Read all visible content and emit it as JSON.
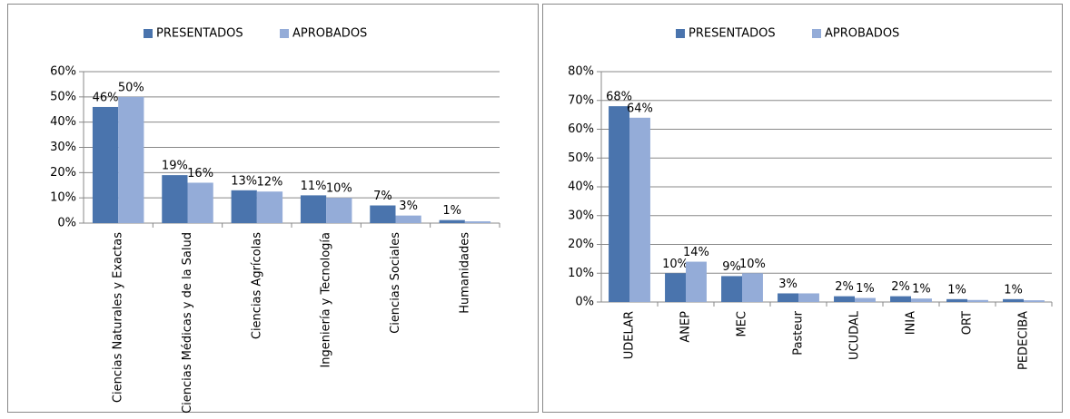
{
  "chart_data": [
    {
      "type": "bar",
      "categories": [
        "Ciencias Naturales y Exactas",
        "Ciencias Médicas y de la Salud",
        "Ciencias Agrícolas",
        "Ingeniería y Tecnología",
        "Ciencias Sociales",
        "Humanidades"
      ],
      "series": [
        {
          "name": "PRESENTADOS",
          "color": "#4a74ad",
          "values": [
            46,
            19,
            13,
            11,
            7,
            1.2
          ],
          "value_labels": [
            "46%",
            "19%",
            "13%",
            "11%",
            "7%",
            "1%"
          ]
        },
        {
          "name": "APROBADOS",
          "color": "#94acd8",
          "values": [
            50,
            16,
            12.5,
            10,
            3,
            0.7
          ],
          "value_labels": [
            "50%",
            "16%",
            "12%",
            "10%",
            "3%",
            null
          ]
        }
      ],
      "ylim": [
        0,
        60
      ],
      "yticks": [
        {
          "value": 0,
          "label": "0%"
        },
        {
          "value": 10,
          "label": "10%"
        },
        {
          "value": 20,
          "label": "20%"
        },
        {
          "value": 30,
          "label": "30%"
        },
        {
          "value": 40,
          "label": "40%"
        },
        {
          "value": 50,
          "label": "50%"
        },
        {
          "value": 60,
          "label": "60%"
        }
      ],
      "grid": true,
      "legend": "top"
    },
    {
      "type": "bar",
      "categories": [
        "UDELAR",
        "ANEP",
        "MEC",
        "Pasteur",
        "UCUDAL",
        "INIA",
        "ORT",
        "PEDECIBA"
      ],
      "series": [
        {
          "name": "PRESENTADOS",
          "color": "#4a74ad",
          "values": [
            68,
            10,
            9,
            3,
            2,
            2,
            1,
            1
          ],
          "value_labels": [
            "68%",
            "10%",
            "9%",
            "3%",
            "2%",
            "2%",
            "1%",
            "1%"
          ]
        },
        {
          "name": "APROBADOS",
          "color": "#94acd8",
          "values": [
            64,
            14,
            10,
            3,
            1.4,
            1.2,
            0.7,
            0.6
          ],
          "value_labels": [
            "64%",
            "14%",
            "10%",
            null,
            "1%",
            "1%",
            null,
            null
          ]
        }
      ],
      "ylim": [
        0,
        80
      ],
      "yticks": [
        {
          "value": 0,
          "label": "0%"
        },
        {
          "value": 10,
          "label": "10%"
        },
        {
          "value": 20,
          "label": "20%"
        },
        {
          "value": 30,
          "label": "30%"
        },
        {
          "value": 40,
          "label": "40%"
        },
        {
          "value": 50,
          "label": "50%"
        },
        {
          "value": 60,
          "label": "60%"
        },
        {
          "value": 70,
          "label": "70%"
        },
        {
          "value": 80,
          "label": "80%"
        }
      ],
      "grid": true,
      "legend": "top"
    }
  ]
}
